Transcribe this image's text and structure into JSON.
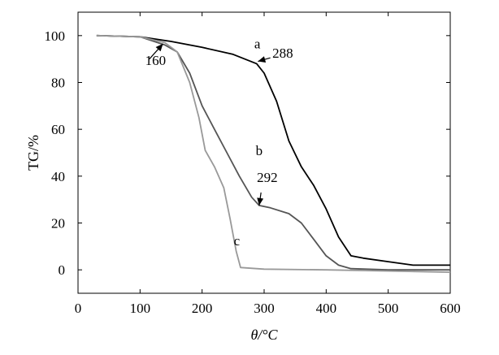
{
  "chart_data": {
    "type": "line",
    "title": "",
    "xlabel": "θ/°C",
    "ylabel": "TG/%",
    "xlim": [
      0,
      600
    ],
    "ylim": [
      -10,
      110
    ],
    "x_ticks": [
      "0",
      "100",
      "200",
      "300",
      "400",
      "500",
      "600"
    ],
    "y_ticks": [
      "0",
      "20",
      "40",
      "60",
      "80",
      "100"
    ],
    "grid": false,
    "legend": "none",
    "series": [
      {
        "name": "a",
        "color": "#000000",
        "points": [
          [
            30,
            100
          ],
          [
            100,
            99.5
          ],
          [
            150,
            97.5
          ],
          [
            200,
            95
          ],
          [
            250,
            92
          ],
          [
            288,
            88
          ],
          [
            300,
            84
          ],
          [
            320,
            72
          ],
          [
            340,
            55
          ],
          [
            360,
            44
          ],
          [
            380,
            36
          ],
          [
            400,
            26
          ],
          [
            420,
            14
          ],
          [
            440,
            6
          ],
          [
            460,
            5
          ],
          [
            500,
            3.5
          ],
          [
            540,
            2
          ],
          [
            600,
            2
          ]
        ]
      },
      {
        "name": "b",
        "color": "#555555",
        "points": [
          [
            30,
            100
          ],
          [
            100,
            99.5
          ],
          [
            140,
            96
          ],
          [
            160,
            93
          ],
          [
            180,
            84
          ],
          [
            200,
            70
          ],
          [
            220,
            60
          ],
          [
            240,
            50
          ],
          [
            260,
            40
          ],
          [
            280,
            31
          ],
          [
            292,
            27.5
          ],
          [
            310,
            26.5
          ],
          [
            340,
            24
          ],
          [
            360,
            20
          ],
          [
            380,
            13
          ],
          [
            400,
            6
          ],
          [
            420,
            2
          ],
          [
            440,
            0.5
          ],
          [
            500,
            0
          ],
          [
            600,
            0
          ]
        ]
      },
      {
        "name": "c",
        "color": "#999999",
        "points": [
          [
            30,
            100
          ],
          [
            100,
            99.5
          ],
          [
            140,
            97
          ],
          [
            160,
            93
          ],
          [
            180,
            80
          ],
          [
            195,
            65
          ],
          [
            205,
            51
          ],
          [
            220,
            44
          ],
          [
            235,
            35
          ],
          [
            245,
            22
          ],
          [
            255,
            8
          ],
          [
            262,
            1
          ],
          [
            300,
            0.3
          ],
          [
            400,
            0
          ],
          [
            500,
            -0.5
          ],
          [
            600,
            -1
          ]
        ]
      }
    ],
    "annotations": [
      {
        "text": "a",
        "x": 289,
        "y": 94.5
      },
      {
        "text": "288",
        "x": 330,
        "y": 90.5
      },
      {
        "text": "b",
        "x": 292,
        "y": 49
      },
      {
        "text": "292",
        "x": 305,
        "y": 37.5
      },
      {
        "text": "c",
        "x": 256,
        "y": 10.5
      },
      {
        "text": "160",
        "x": 125,
        "y": 87.5
      }
    ],
    "arrows": [
      {
        "from": [
          310,
          90.5
        ],
        "to": [
          290,
          89
        ]
      },
      {
        "from": [
          115,
          90
        ],
        "to": [
          137,
          96.5
        ]
      },
      {
        "from": [
          295,
          33
        ],
        "to": [
          292,
          27.5
        ]
      }
    ]
  }
}
